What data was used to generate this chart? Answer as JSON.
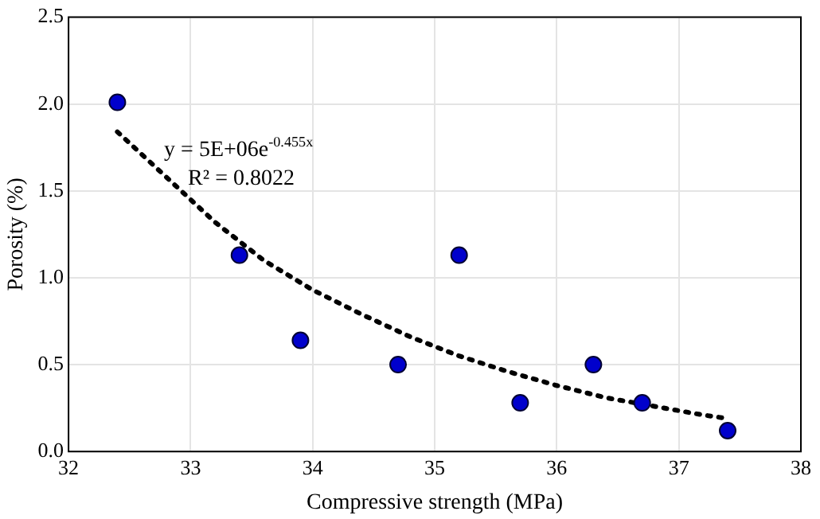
{
  "chart_data": {
    "type": "scatter",
    "xlabel": "Compressive strength (MPa)",
    "ylabel": "Porosity (%)",
    "xlim": [
      32,
      38
    ],
    "xticks": [
      32,
      33,
      34,
      35,
      36,
      37,
      38
    ],
    "ylim": [
      0,
      2.5
    ],
    "yticks": [
      {
        "value": 0,
        "label": "0.0"
      },
      {
        "value": 0.5,
        "label": "0.5"
      },
      {
        "value": 1,
        "label": "1.0"
      },
      {
        "value": 1.5,
        "label": "1.5"
      },
      {
        "value": 2,
        "label": "2.0"
      },
      {
        "value": 2.5,
        "label": "2.5"
      }
    ],
    "grid": true,
    "legend": false,
    "marker": "circle",
    "annotations": [
      "y = 5E+06e$^{-0.455x}$",
      "R² = 0.8022"
    ],
    "series": [
      {
        "color": "#0000cc",
        "x": [
          32.4,
          33.4,
          33.9,
          34.7,
          35.2,
          35.7,
          36.3,
          36.7,
          37.4
        ],
        "values": [
          2.01,
          1.13,
          0.64,
          0.5,
          1.13,
          0.28,
          0.5,
          0.28,
          0.12
        ]
      },
      {
        "type": "line",
        "line_style": "dotted",
        "marker": "none",
        "color": "#000000",
        "x": [
          32.4,
          32.8,
          33.2,
          33.6,
          34,
          34.4,
          34.8,
          35.2,
          35.6,
          36,
          36.4,
          36.8,
          37.2,
          37.4
        ],
        "values": [
          1.84,
          1.58,
          1.32,
          1.1,
          0.93,
          0.79,
          0.66,
          0.55,
          0.46,
          0.38,
          0.31,
          0.26,
          0.21,
          0.19
        ]
      }
    ]
  }
}
